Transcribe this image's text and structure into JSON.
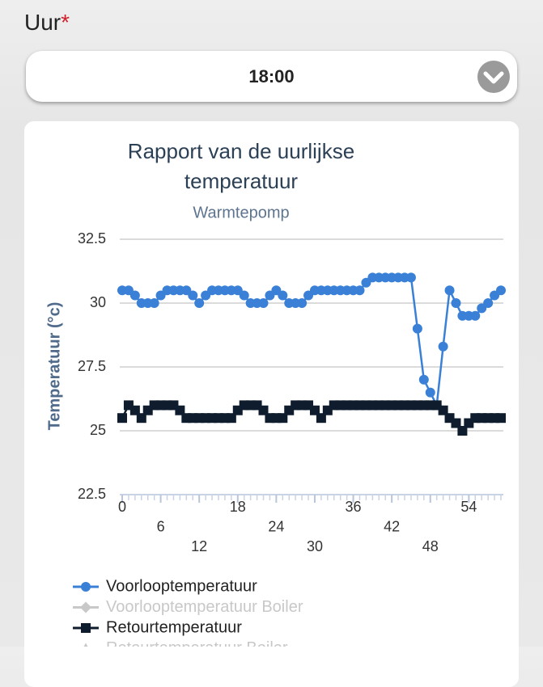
{
  "form": {
    "label": "Uur",
    "required_mark": "*",
    "selected": "18:00"
  },
  "chart_data": {
    "type": "line",
    "title": [
      "Rapport van de uurlijkse",
      "temperatuur"
    ],
    "subtitle": "Warmtepomp",
    "y_label": "Temperatuur (°c)",
    "x": [
      0,
      1,
      2,
      3,
      4,
      5,
      6,
      7,
      8,
      9,
      10,
      11,
      12,
      13,
      14,
      15,
      16,
      17,
      18,
      19,
      20,
      21,
      22,
      23,
      24,
      25,
      26,
      27,
      28,
      29,
      30,
      31,
      32,
      33,
      34,
      35,
      36,
      37,
      38,
      39,
      40,
      41,
      42,
      43,
      44,
      45,
      46,
      47,
      48,
      49,
      50,
      51,
      52,
      53,
      54,
      55,
      56,
      57,
      58,
      59
    ],
    "xlim": [
      0,
      59
    ],
    "xticks": [
      0,
      6,
      12,
      18,
      24,
      30,
      36,
      42,
      48,
      54
    ],
    "ylim": [
      22.5,
      32.5
    ],
    "yticks": [
      22.5,
      25,
      27.5,
      30,
      32.5
    ],
    "grid": true,
    "series": [
      {
        "name": "Voorlooptemperatuur",
        "color": "#3a80d6",
        "marker": "circle",
        "values": [
          30.5,
          30.5,
          30.3,
          30,
          30,
          30,
          30.3,
          30.5,
          30.5,
          30.5,
          30.5,
          30.3,
          30,
          30.3,
          30.5,
          30.5,
          30.5,
          30.5,
          30.5,
          30.3,
          30,
          30,
          30,
          30.3,
          30.5,
          30.3,
          30,
          30,
          30,
          30.3,
          30.5,
          30.5,
          30.5,
          30.5,
          30.5,
          30.5,
          30.5,
          30.5,
          30.8,
          31,
          31,
          31,
          31,
          31,
          31,
          31,
          29,
          27,
          26.5,
          26,
          28.3,
          30.5,
          30,
          29.5,
          29.5,
          29.5,
          29.8,
          30,
          30.3,
          30.5
        ]
      },
      {
        "name": "Voorlooptemperatuur Boiler",
        "color": "#c8c8c8",
        "marker": "diamond",
        "visible": false
      },
      {
        "name": "Retourtemperatuur",
        "color": "#0f1c2e",
        "marker": "square",
        "values": [
          25.5,
          26,
          25.8,
          25.5,
          25.8,
          26,
          26,
          26,
          26,
          25.8,
          25.5,
          25.5,
          25.5,
          25.5,
          25.5,
          25.5,
          25.5,
          25.5,
          25.8,
          26,
          26,
          26,
          25.8,
          25.5,
          25.5,
          25.5,
          25.8,
          26,
          26,
          26,
          25.8,
          25.5,
          25.8,
          26,
          26,
          26,
          26,
          26,
          26,
          26,
          26,
          26,
          26,
          26,
          26,
          26,
          26,
          26,
          26,
          26,
          25.8,
          25.5,
          25.3,
          25,
          25.3,
          25.5,
          25.5,
          25.5,
          25.5,
          25.5
        ]
      },
      {
        "name": "Retourtemperatuur Boiler",
        "color": "#c8c8c8",
        "marker": "triangle",
        "visible": false
      }
    ]
  }
}
